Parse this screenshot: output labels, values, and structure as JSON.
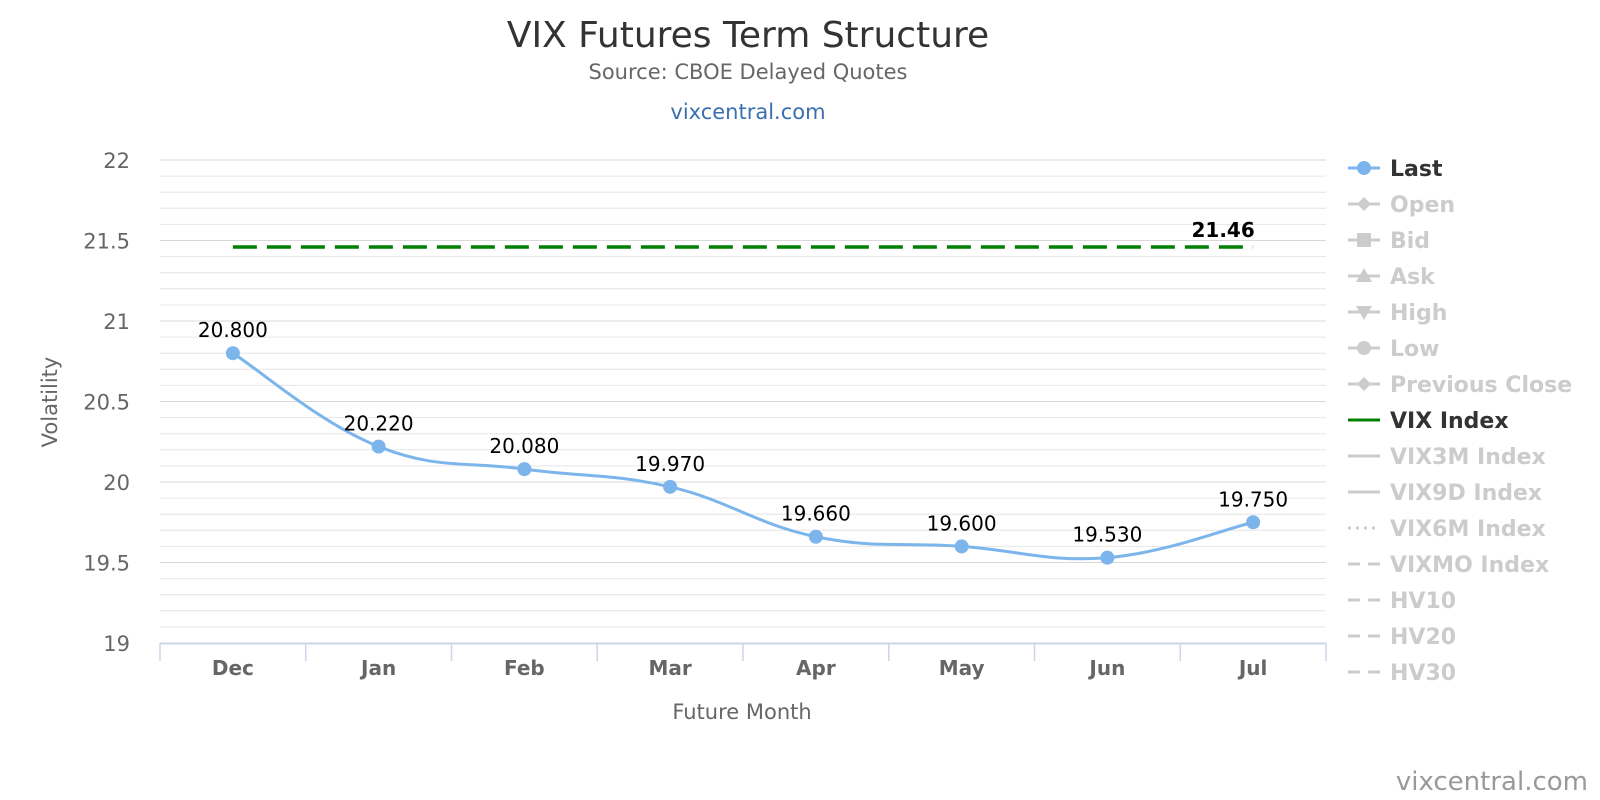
{
  "header": {
    "title": "VIX Futures Term Structure",
    "subtitle": "Source: CBOE Delayed Quotes",
    "link": "vixcentral.com"
  },
  "credit": "vixcentral.com",
  "chart_data": {
    "type": "line",
    "title": "VIX Futures Term Structure",
    "subtitle": "Source: CBOE Delayed Quotes",
    "xlabel": "Future Month",
    "ylabel": "Volatility",
    "categories": [
      "Dec",
      "Jan",
      "Feb",
      "Mar",
      "Apr",
      "May",
      "Jun",
      "Jul"
    ],
    "ylim": [
      19,
      22
    ],
    "yticks": [
      "19",
      "19.5",
      "20",
      "20.5",
      "21",
      "21.5",
      "22"
    ],
    "grid": true,
    "legend_position": "right",
    "series": [
      {
        "name": "Last",
        "color": "#7cb5ec",
        "values": [
          20.8,
          20.22,
          20.08,
          19.97,
          19.66,
          19.6,
          19.53,
          19.75
        ],
        "labels": [
          "20.800",
          "20.220",
          "20.080",
          "19.970",
          "19.660",
          "19.600",
          "19.530",
          "19.750"
        ]
      },
      {
        "name": "VIX Index",
        "color": "#008000",
        "style": "dashed",
        "value": 21.46,
        "label": "21.46"
      }
    ],
    "legend": [
      {
        "name": "Last",
        "marker": "circle",
        "color": "#7cb5ec",
        "active": true
      },
      {
        "name": "Open",
        "marker": "diamond",
        "color": "#cccccc",
        "active": false
      },
      {
        "name": "Bid",
        "marker": "square",
        "color": "#cccccc",
        "active": false
      },
      {
        "name": "Ask",
        "marker": "triangle",
        "color": "#cccccc",
        "active": false
      },
      {
        "name": "High",
        "marker": "triangle-down",
        "color": "#cccccc",
        "active": false
      },
      {
        "name": "Low",
        "marker": "circle",
        "color": "#cccccc",
        "active": false
      },
      {
        "name": "Previous Close",
        "marker": "diamond",
        "color": "#cccccc",
        "active": false
      },
      {
        "name": "VIX Index",
        "marker": "solid",
        "color": "#008000",
        "active": true
      },
      {
        "name": "VIX3M Index",
        "marker": "solid",
        "color": "#cccccc",
        "active": false
      },
      {
        "name": "VIX9D Index",
        "marker": "solid",
        "color": "#cccccc",
        "active": false
      },
      {
        "name": "VIX6M Index",
        "marker": "dotted",
        "color": "#cccccc",
        "active": false
      },
      {
        "name": "VIXMO Index",
        "marker": "dashed",
        "color": "#cccccc",
        "active": false
      },
      {
        "name": "HV10",
        "marker": "dashed",
        "color": "#cccccc",
        "active": false
      },
      {
        "name": "HV20",
        "marker": "dashed",
        "color": "#cccccc",
        "active": false
      },
      {
        "name": "HV30",
        "marker": "dashed",
        "color": "#cccccc",
        "active": false
      }
    ]
  }
}
